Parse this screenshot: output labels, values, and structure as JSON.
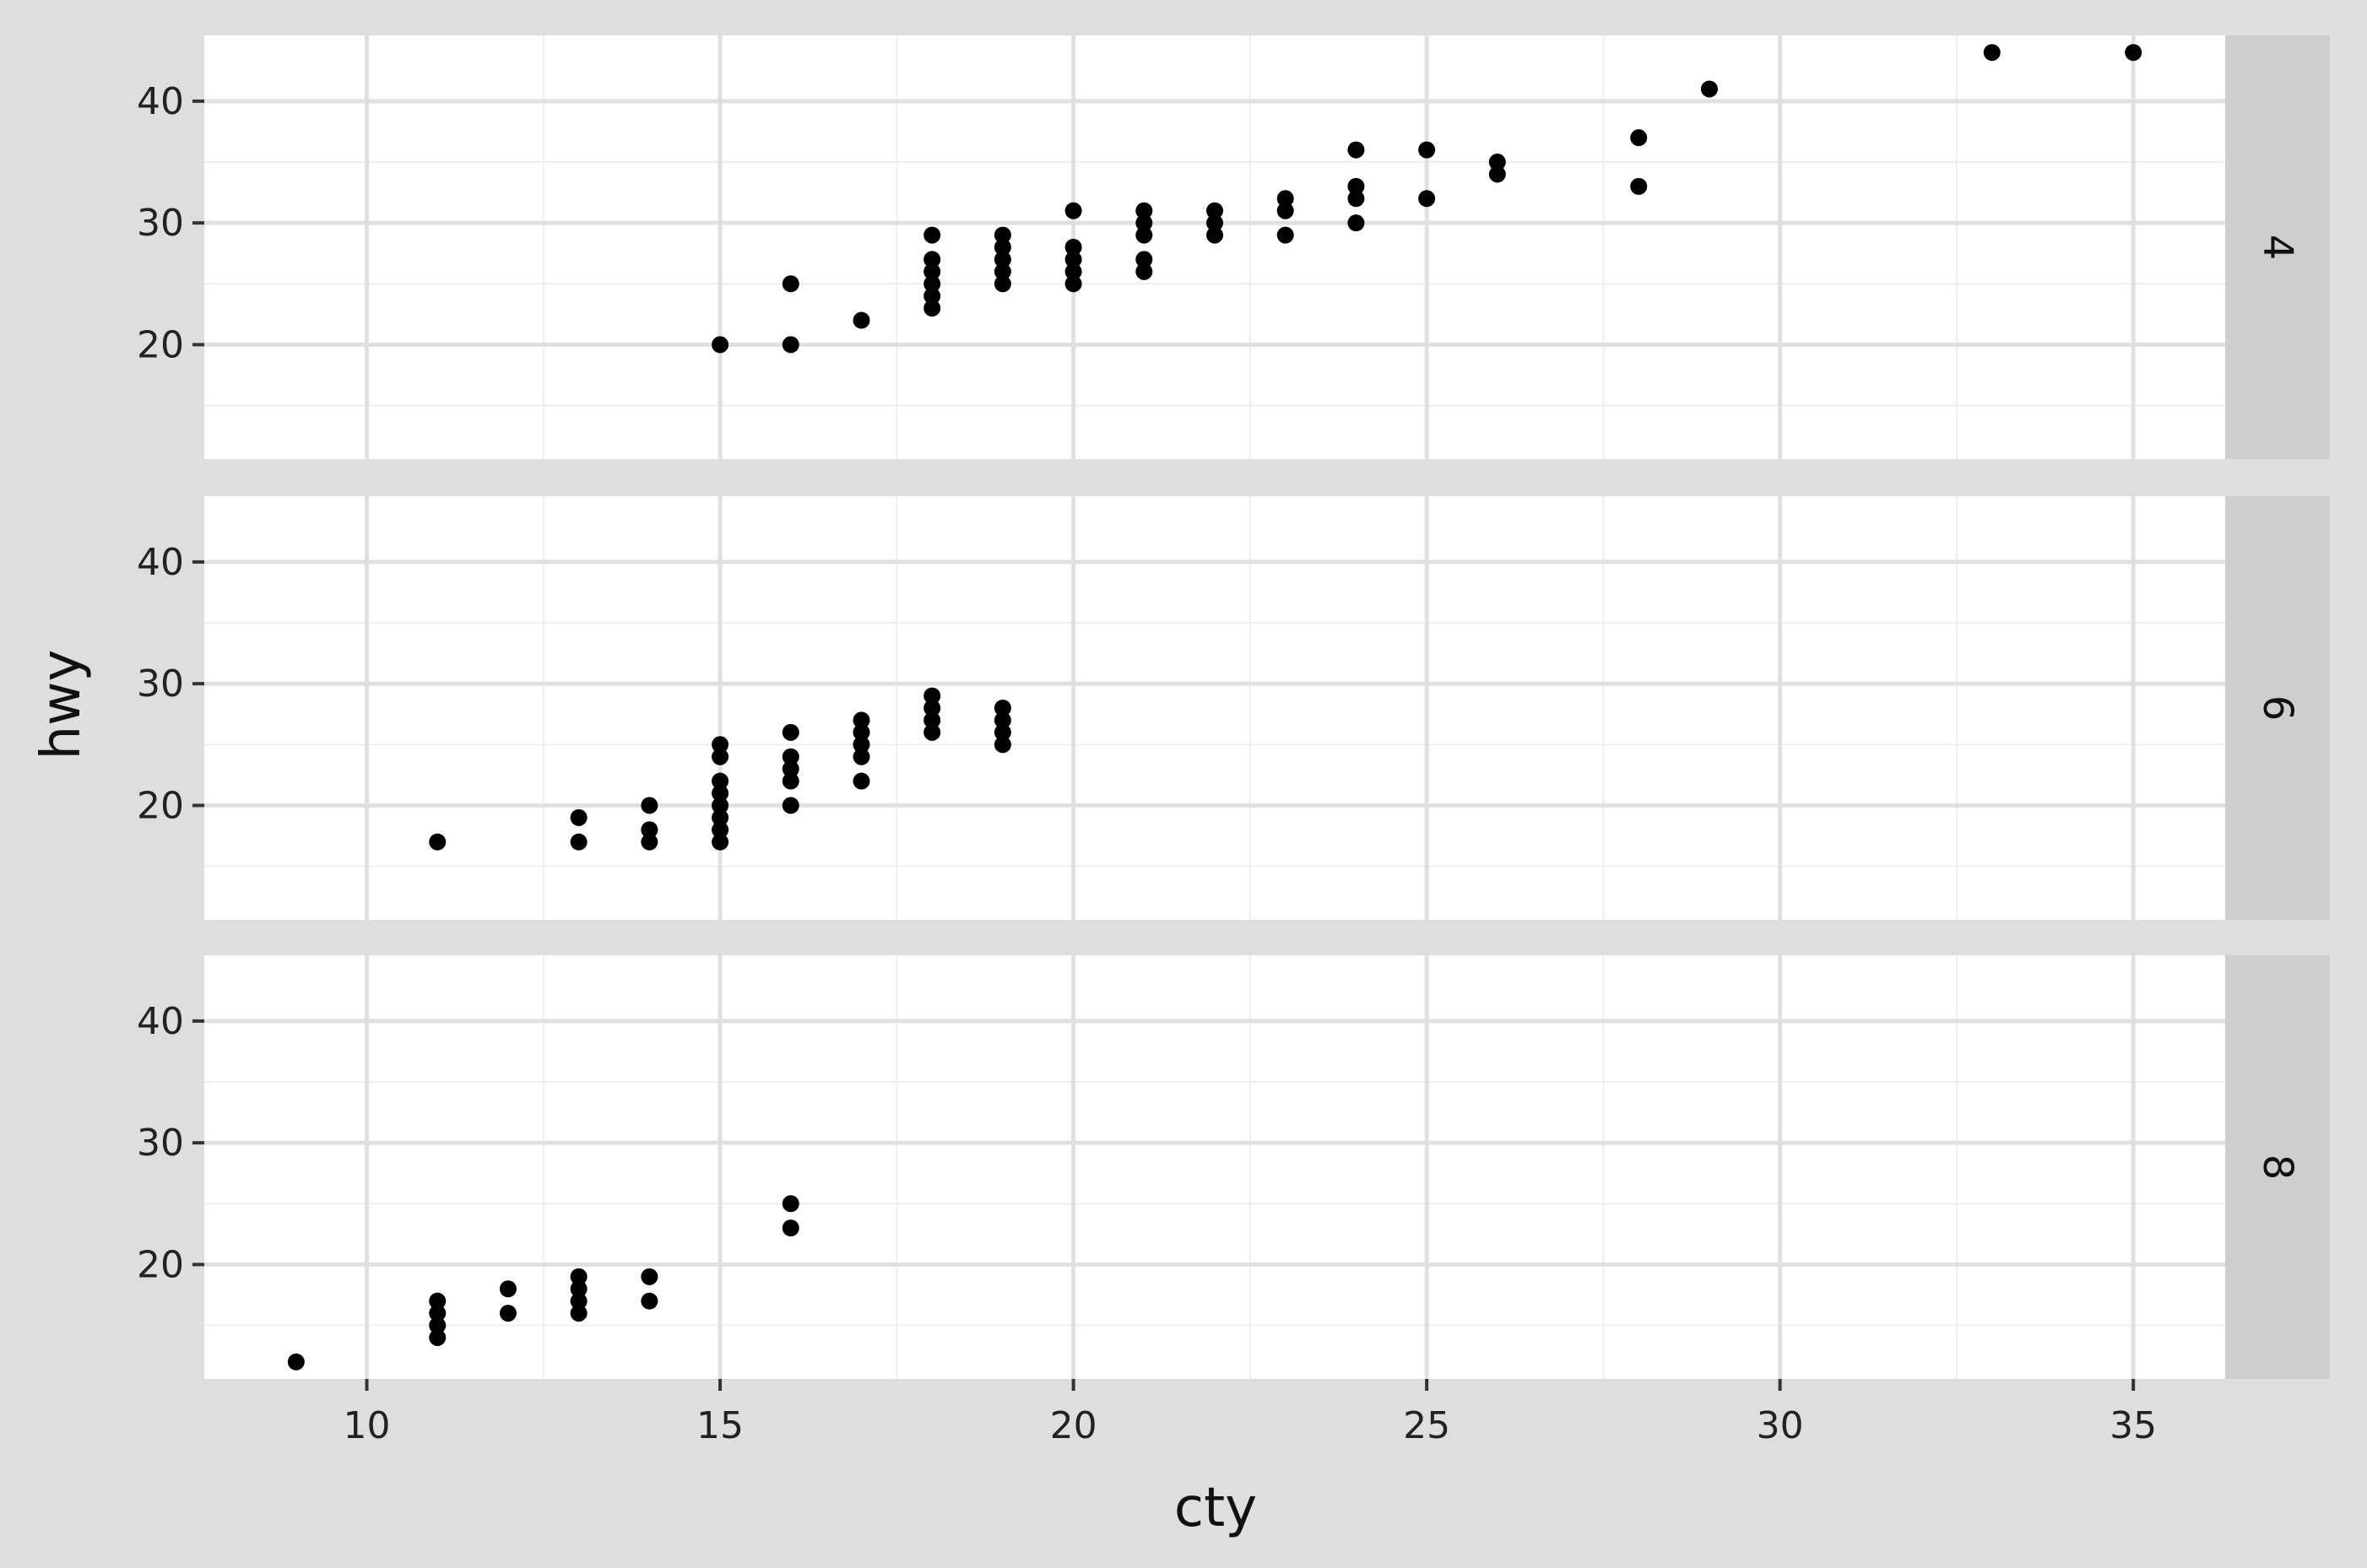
{
  "chart_data": {
    "type": "scatter",
    "facet_type": "facet_grid rows",
    "xlabel": "cty",
    "ylabel": "hwy",
    "xlim": [
      7.7,
      36.3
    ],
    "ylim": [
      10.6,
      45.4
    ],
    "x_ticks": [
      10,
      15,
      20,
      25,
      30,
      35
    ],
    "y_ticks": [
      20,
      30,
      40
    ],
    "grid": true,
    "point_color": "#000000",
    "panel_background": "#ffffff",
    "plot_background": "#dedede",
    "strip_background": "#cecece",
    "gridline_color": "#e0e0e0",
    "panels": [
      {
        "label": "4",
        "points": [
          [
            15,
            20
          ],
          [
            16,
            20
          ],
          [
            16,
            25
          ],
          [
            17,
            22
          ],
          [
            18,
            23
          ],
          [
            18,
            24
          ],
          [
            18,
            25
          ],
          [
            18,
            26
          ],
          [
            18,
            27
          ],
          [
            18,
            29
          ],
          [
            19,
            25
          ],
          [
            19,
            26
          ],
          [
            19,
            27
          ],
          [
            19,
            28
          ],
          [
            19,
            29
          ],
          [
            20,
            25
          ],
          [
            20,
            26
          ],
          [
            20,
            27
          ],
          [
            20,
            28
          ],
          [
            20,
            31
          ],
          [
            21,
            26
          ],
          [
            21,
            27
          ],
          [
            21,
            29
          ],
          [
            21,
            30
          ],
          [
            21,
            31
          ],
          [
            22,
            29
          ],
          [
            22,
            30
          ],
          [
            22,
            31
          ],
          [
            23,
            29
          ],
          [
            23,
            31
          ],
          [
            23,
            32
          ],
          [
            24,
            30
          ],
          [
            24,
            32
          ],
          [
            24,
            33
          ],
          [
            24,
            36
          ],
          [
            25,
            32
          ],
          [
            25,
            36
          ],
          [
            26,
            34
          ],
          [
            26,
            35
          ],
          [
            28,
            33
          ],
          [
            28,
            37
          ],
          [
            29,
            41
          ],
          [
            33,
            44
          ],
          [
            35,
            44
          ]
        ]
      },
      {
        "label": "6",
        "points": [
          [
            11,
            17
          ],
          [
            13,
            17
          ],
          [
            13,
            19
          ],
          [
            14,
            17
          ],
          [
            14,
            18
          ],
          [
            14,
            20
          ],
          [
            15,
            17
          ],
          [
            15,
            18
          ],
          [
            15,
            19
          ],
          [
            15,
            20
          ],
          [
            15,
            21
          ],
          [
            15,
            22
          ],
          [
            15,
            24
          ],
          [
            15,
            25
          ],
          [
            16,
            20
          ],
          [
            16,
            22
          ],
          [
            16,
            23
          ],
          [
            16,
            24
          ],
          [
            16,
            26
          ],
          [
            17,
            22
          ],
          [
            17,
            24
          ],
          [
            17,
            25
          ],
          [
            17,
            26
          ],
          [
            17,
            27
          ],
          [
            18,
            26
          ],
          [
            18,
            27
          ],
          [
            18,
            28
          ],
          [
            18,
            29
          ],
          [
            19,
            25
          ],
          [
            19,
            26
          ],
          [
            19,
            27
          ],
          [
            19,
            28
          ]
        ]
      },
      {
        "label": "8",
        "points": [
          [
            9,
            12
          ],
          [
            11,
            14
          ],
          [
            11,
            15
          ],
          [
            11,
            16
          ],
          [
            11,
            17
          ],
          [
            12,
            16
          ],
          [
            12,
            18
          ],
          [
            13,
            16
          ],
          [
            13,
            17
          ],
          [
            13,
            18
          ],
          [
            13,
            19
          ],
          [
            14,
            17
          ],
          [
            14,
            19
          ],
          [
            16,
            23
          ],
          [
            16,
            25
          ]
        ]
      }
    ]
  }
}
